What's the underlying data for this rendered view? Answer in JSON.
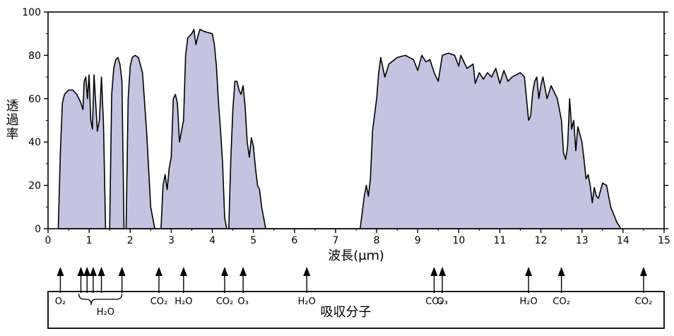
{
  "chart_data": {
    "type": "area",
    "ylabel": "透過率",
    "xlabel": "波長(μｍ)",
    "xlim": [
      0,
      15
    ],
    "ylim": [
      0,
      100
    ],
    "x_ticks": [
      "0",
      "1",
      "2",
      "3",
      "4",
      "5",
      "6",
      "7",
      "8",
      "9",
      "10",
      "11",
      "12",
      "13",
      "14",
      "15"
    ],
    "y_ticks": [
      "0",
      "20",
      "40",
      "60",
      "80",
      "100"
    ],
    "grid": false,
    "fill_color": "#c4c4e0",
    "line_color": "#000000",
    "series": [
      {
        "points": [
          [
            0.25,
            0
          ],
          [
            0.3,
            35
          ],
          [
            0.35,
            58
          ],
          [
            0.4,
            62
          ],
          [
            0.5,
            64
          ],
          [
            0.6,
            64
          ],
          [
            0.7,
            62
          ],
          [
            0.8,
            58
          ],
          [
            0.85,
            55
          ],
          [
            0.88,
            68
          ],
          [
            0.92,
            70
          ],
          [
            0.96,
            60
          ],
          [
            1.0,
            71
          ],
          [
            1.04,
            50
          ],
          [
            1.08,
            46
          ],
          [
            1.12,
            71
          ],
          [
            1.17,
            55
          ],
          [
            1.2,
            45
          ],
          [
            1.25,
            50
          ],
          [
            1.3,
            70
          ],
          [
            1.35,
            48
          ],
          [
            1.4,
            0
          ],
          [
            1.5,
            0
          ],
          [
            1.55,
            62
          ],
          [
            1.6,
            74
          ],
          [
            1.65,
            78
          ],
          [
            1.7,
            79
          ],
          [
            1.75,
            76
          ],
          [
            1.8,
            68
          ],
          [
            1.85,
            0
          ],
          [
            1.9,
            0
          ],
          [
            1.95,
            60
          ],
          [
            2.0,
            75
          ],
          [
            2.05,
            79
          ],
          [
            2.12,
            80
          ],
          [
            2.2,
            79
          ],
          [
            2.3,
            72
          ],
          [
            2.4,
            45
          ],
          [
            2.5,
            10
          ],
          [
            2.6,
            0
          ],
          [
            2.75,
            0
          ],
          [
            2.8,
            20
          ],
          [
            2.85,
            25
          ],
          [
            2.9,
            18
          ],
          [
            2.95,
            28
          ],
          [
            3.0,
            33
          ],
          [
            3.05,
            60
          ],
          [
            3.1,
            62
          ],
          [
            3.15,
            58
          ],
          [
            3.2,
            40
          ],
          [
            3.25,
            45
          ],
          [
            3.3,
            50
          ],
          [
            3.35,
            80
          ],
          [
            3.4,
            88
          ],
          [
            3.5,
            90
          ],
          [
            3.55,
            92
          ],
          [
            3.6,
            85
          ],
          [
            3.65,
            89
          ],
          [
            3.7,
            92
          ],
          [
            3.8,
            91
          ],
          [
            4.0,
            90
          ],
          [
            4.05,
            85
          ],
          [
            4.1,
            75
          ],
          [
            4.15,
            58
          ],
          [
            4.2,
            45
          ],
          [
            4.25,
            30
          ],
          [
            4.3,
            5
          ],
          [
            4.35,
            0
          ],
          [
            4.4,
            0
          ],
          [
            4.45,
            32
          ],
          [
            4.5,
            55
          ],
          [
            4.55,
            68
          ],
          [
            4.6,
            68
          ],
          [
            4.65,
            64
          ],
          [
            4.7,
            62
          ],
          [
            4.75,
            66
          ],
          [
            4.8,
            56
          ],
          [
            4.85,
            40
          ],
          [
            4.9,
            33
          ],
          [
            4.95,
            42
          ],
          [
            5.0,
            38
          ],
          [
            5.05,
            28
          ],
          [
            5.1,
            20
          ],
          [
            5.15,
            18
          ],
          [
            5.2,
            10
          ],
          [
            5.3,
            0
          ],
          [
            5.45,
            0
          ],
          [
            7.6,
            0
          ],
          [
            7.7,
            15
          ],
          [
            7.75,
            20
          ],
          [
            7.8,
            15
          ],
          [
            7.85,
            23
          ],
          [
            7.9,
            45
          ],
          [
            8.0,
            60
          ],
          [
            8.05,
            72
          ],
          [
            8.1,
            79
          ],
          [
            8.2,
            70
          ],
          [
            8.3,
            76
          ],
          [
            8.5,
            79
          ],
          [
            8.7,
            80
          ],
          [
            8.9,
            78
          ],
          [
            9.0,
            73
          ],
          [
            9.1,
            80
          ],
          [
            9.2,
            77
          ],
          [
            9.3,
            78
          ],
          [
            9.4,
            72
          ],
          [
            9.5,
            68
          ],
          [
            9.6,
            80
          ],
          [
            9.75,
            81
          ],
          [
            9.9,
            80
          ],
          [
            10.0,
            75
          ],
          [
            10.05,
            80
          ],
          [
            10.2,
            74
          ],
          [
            10.35,
            76
          ],
          [
            10.4,
            67
          ],
          [
            10.5,
            72
          ],
          [
            10.6,
            69
          ],
          [
            10.7,
            72
          ],
          [
            10.8,
            70
          ],
          [
            10.9,
            74
          ],
          [
            11.0,
            67
          ],
          [
            11.1,
            73
          ],
          [
            11.2,
            68
          ],
          [
            11.3,
            70
          ],
          [
            11.5,
            72
          ],
          [
            11.6,
            70
          ],
          [
            11.7,
            50
          ],
          [
            11.75,
            52
          ],
          [
            11.8,
            63
          ],
          [
            11.85,
            68
          ],
          [
            11.9,
            70
          ],
          [
            11.95,
            60
          ],
          [
            12.0,
            66
          ],
          [
            12.05,
            70
          ],
          [
            12.15,
            60
          ],
          [
            12.25,
            66
          ],
          [
            12.4,
            60
          ],
          [
            12.5,
            50
          ],
          [
            12.55,
            35
          ],
          [
            12.6,
            32
          ],
          [
            12.65,
            38
          ],
          [
            12.7,
            60
          ],
          [
            12.75,
            46
          ],
          [
            12.8,
            50
          ],
          [
            12.85,
            36
          ],
          [
            12.9,
            47
          ],
          [
            13.0,
            40
          ],
          [
            13.05,
            32
          ],
          [
            13.1,
            23
          ],
          [
            13.15,
            25
          ],
          [
            13.2,
            20
          ],
          [
            13.25,
            12
          ],
          [
            13.3,
            19
          ],
          [
            13.35,
            15
          ],
          [
            13.4,
            14
          ],
          [
            13.5,
            21
          ],
          [
            13.6,
            20
          ],
          [
            13.7,
            10
          ],
          [
            13.85,
            3
          ],
          [
            13.95,
            0
          ],
          [
            14.0,
            0
          ]
        ]
      }
    ],
    "absorption_title": "吸収分子",
    "absorbers": [
      {
        "x": 0.3,
        "label": "O₂"
      },
      {
        "x": 0.8,
        "label": ""
      },
      {
        "x": 0.95,
        "label": ""
      },
      {
        "x": 1.1,
        "label": ""
      },
      {
        "x": 1.3,
        "label": ""
      },
      {
        "x": 1.8,
        "label": ""
      },
      {
        "x": 1.05,
        "label": "H₂O",
        "bracket": [
          0.75,
          1.8
        ]
      },
      {
        "x": 2.7,
        "label": "CO₂"
      },
      {
        "x": 3.3,
        "label": "H₂O"
      },
      {
        "x": 4.3,
        "label": "CO₂"
      },
      {
        "x": 4.75,
        "label": "O₃"
      },
      {
        "x": 6.3,
        "label": "H₂O"
      },
      {
        "x": 9.4,
        "label": "CO₂"
      },
      {
        "x": 9.6,
        "label": "O₃"
      },
      {
        "x": 11.7,
        "label": "H₂O"
      },
      {
        "x": 12.5,
        "label": "CO₂"
      },
      {
        "x": 14.5,
        "label": "CO₂"
      }
    ]
  }
}
